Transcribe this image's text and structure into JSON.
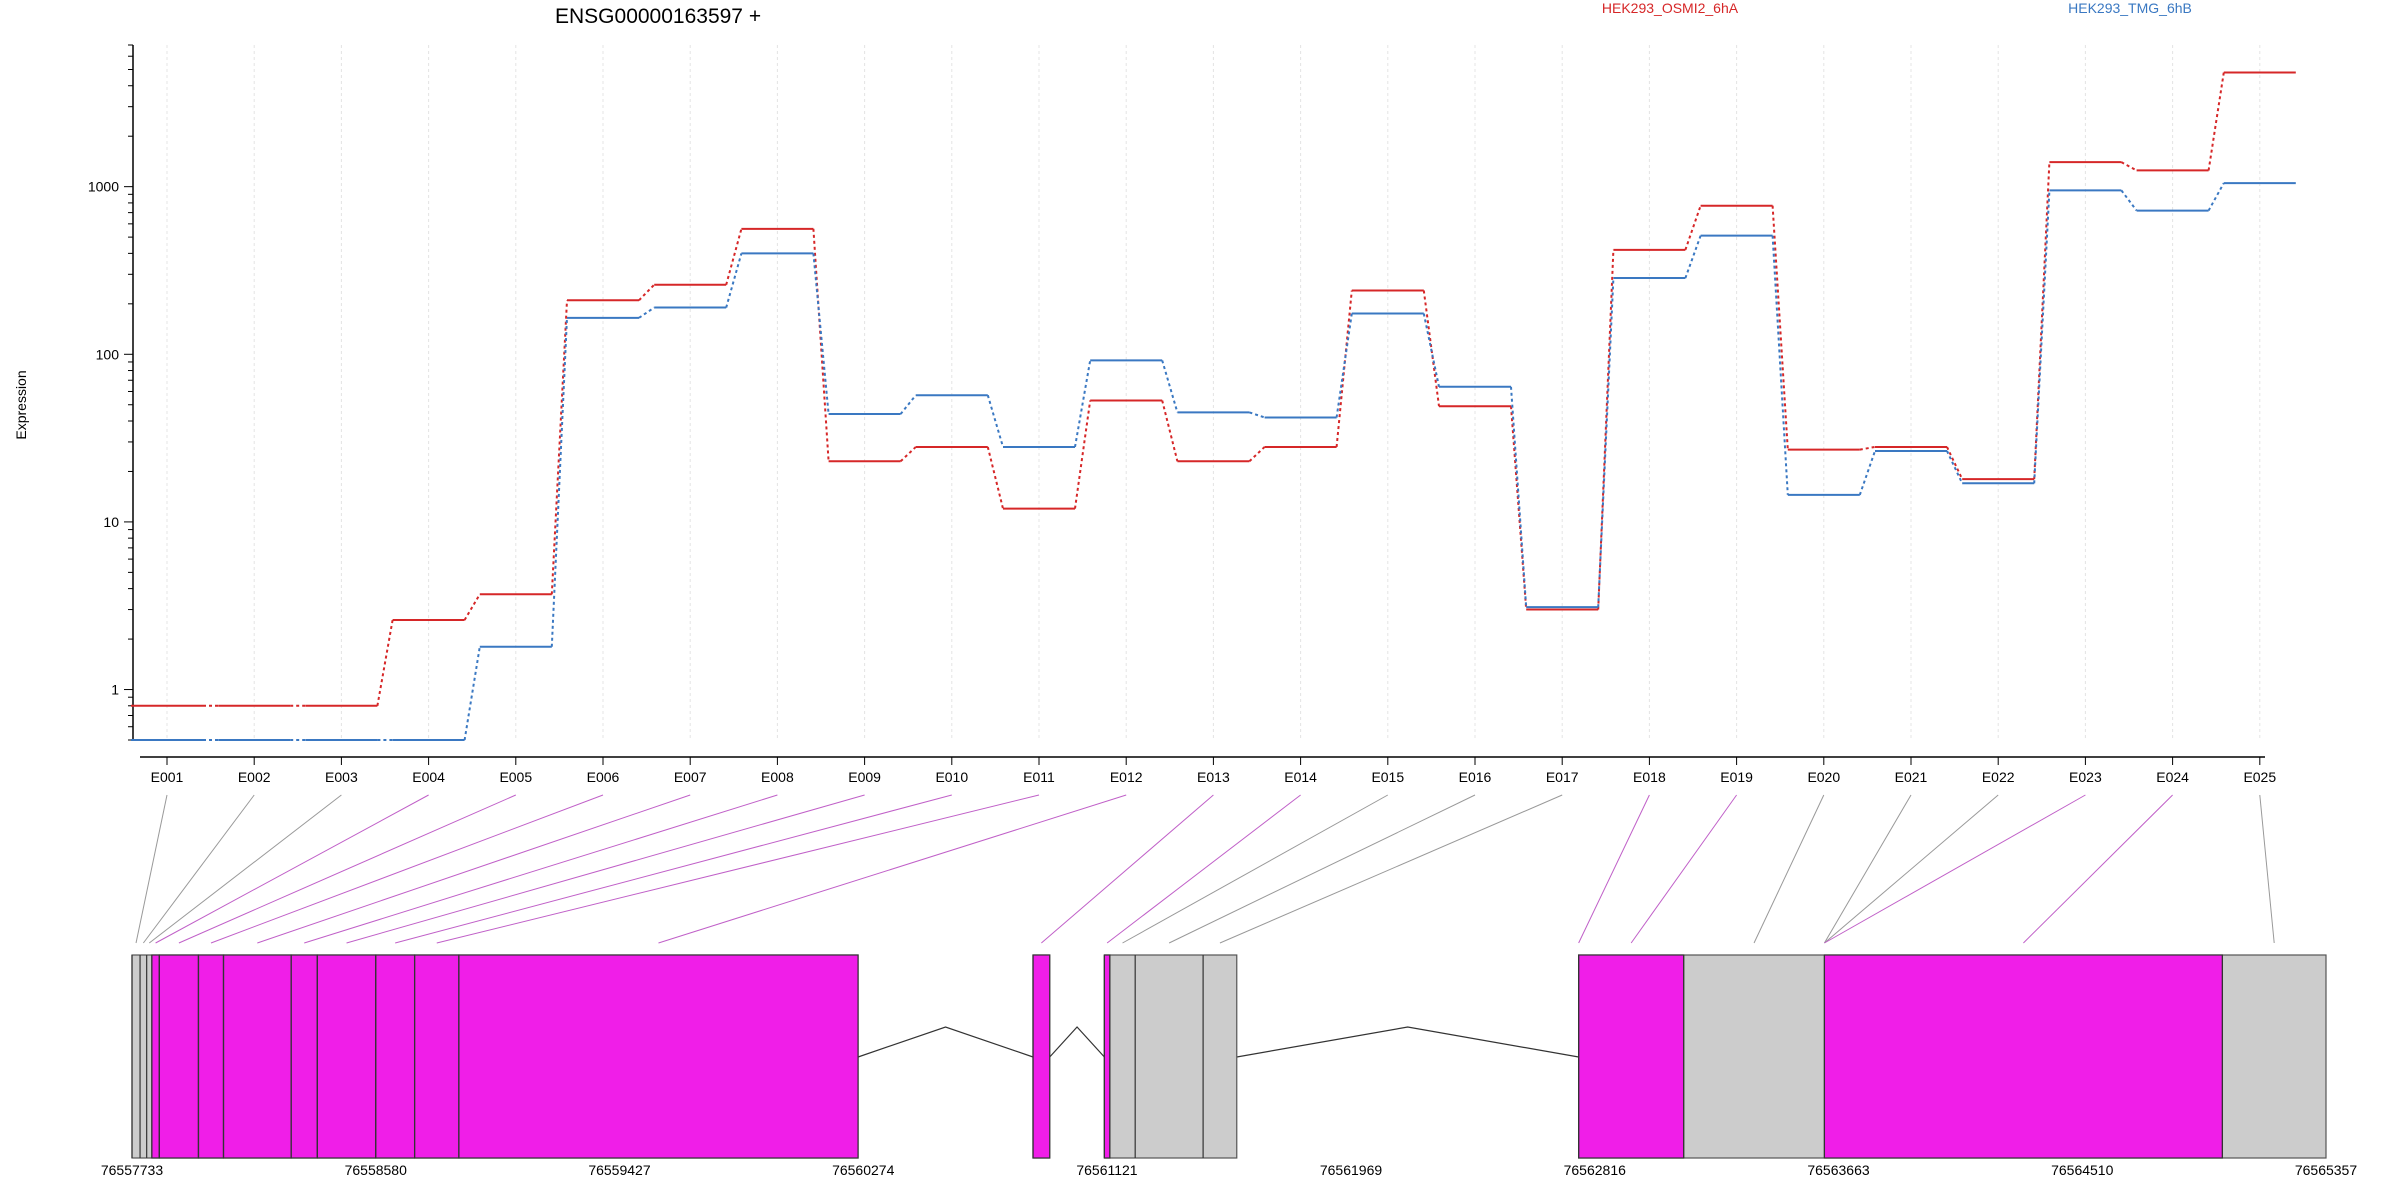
{
  "chart_data": {
    "type": "line",
    "title": "ENSG00000163597 +",
    "ylabel": "Expression",
    "y_scale": "log",
    "ylim": [
      0.5,
      7000
    ],
    "y_ticks": [
      "1",
      "10",
      "100",
      "1000"
    ],
    "grid": true,
    "legend_placement": "top-right",
    "categories": [
      "E001",
      "E002",
      "E003",
      "E004",
      "E005",
      "E006",
      "E007",
      "E008",
      "E009",
      "E010",
      "E011",
      "E012",
      "E013",
      "E014",
      "E015",
      "E016",
      "E017",
      "E018",
      "E019",
      "E020",
      "E021",
      "E022",
      "E023",
      "E024",
      "E025"
    ],
    "series": [
      {
        "name": "HEK293_OSMI2_6hA",
        "color": "#d62728",
        "values": [
          0.8,
          0.8,
          0.8,
          2.6,
          3.7,
          210,
          260,
          560,
          23,
          28,
          12,
          53,
          23,
          28,
          240,
          49,
          3.0,
          420,
          770,
          27,
          28,
          18,
          1400,
          1250,
          4800
        ]
      },
      {
        "name": "HEK293_TMG_6hB",
        "color": "#3a78c2",
        "values": [
          0.5,
          0.5,
          0.5,
          0.5,
          1.8,
          165,
          190,
          400,
          44,
          57,
          28,
          92,
          45,
          42,
          175,
          64,
          3.1,
          285,
          510,
          14.5,
          26.5,
          17,
          950,
          720,
          1050
        ]
      }
    ],
    "gene_track": {
      "axis_ticks": [
        "76557733",
        "76558580",
        "76559427",
        "76560274",
        "76561121",
        "76561969",
        "76562816",
        "76563663",
        "76564510",
        "76565357"
      ],
      "range": [
        76557733,
        76565357
      ],
      "exon_coords": [
        [
          76557733,
          76557761
        ],
        [
          76557761,
          76557784
        ],
        [
          76557784,
          76557802
        ],
        [
          76557802,
          76557828
        ],
        [
          76557828,
          76557964
        ],
        [
          76557964,
          76558051
        ],
        [
          76558051,
          76558286
        ],
        [
          76558286,
          76558377
        ],
        [
          76558377,
          76558580
        ],
        [
          76558580,
          76558715
        ],
        [
          76558715,
          76558869
        ],
        [
          76558869,
          76560256
        ],
        [
          76560864,
          76560922
        ],
        [
          76561112,
          76561131
        ],
        [
          76561131,
          76561219
        ],
        [
          76561219,
          76561455
        ],
        [
          76561455,
          76561572
        ],
        [
          76562760,
          76562760
        ],
        [
          76562760,
          76563125
        ],
        [
          76563125,
          76563614
        ],
        [
          76563614,
          76563614
        ],
        [
          76563614,
          76563614
        ],
        [
          76563614,
          76563614
        ],
        [
          76563614,
          76564997
        ],
        [
          76564997,
          76565357
        ]
      ],
      "highlighted": [
        "E004",
        "E005",
        "E006",
        "E007",
        "E008",
        "E009",
        "E010",
        "E011",
        "E012",
        "E013",
        "E014",
        "E018",
        "E019",
        "E023",
        "E024"
      ],
      "exon_color": "#cccccc",
      "highlight_color": "#f01ee8",
      "connector_grey": "#999999",
      "connector_highlight": "#c060c8"
    }
  }
}
